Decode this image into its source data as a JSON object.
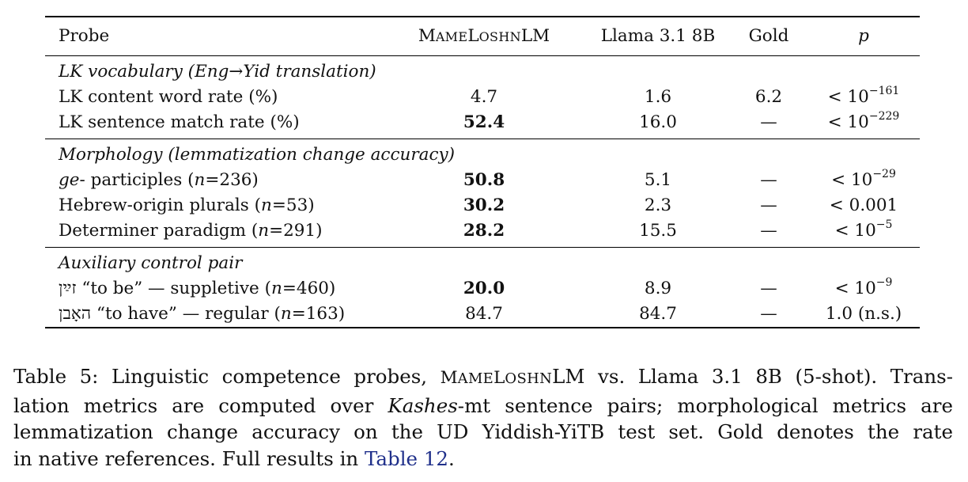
{
  "table": {
    "headers": {
      "probe": "Probe",
      "model_a_first": "M",
      "model_a_small1": "AME",
      "model_a_mid": "L",
      "model_a_small2": "OSHN",
      "model_a_end": "LM",
      "model_b": "Llama 3.1 8B",
      "gold": "Gold",
      "p": "p"
    },
    "sections": [
      {
        "title": "LK vocabulary (Eng→Yid translation)",
        "rows": [
          {
            "probe": "LK content word rate (%)",
            "a": "4.7",
            "b": "1.6",
            "gold": "6.2",
            "p_base": "< 10",
            "p_exp": "−161"
          },
          {
            "probe": "LK sentence match rate (%)",
            "a": "52.4",
            "b": "16.0",
            "gold": "—",
            "p_base": "< 10",
            "p_exp": "−229"
          }
        ]
      },
      {
        "title": "Morphology (lemmatization change accuracy)",
        "rows": [
          {
            "probe_italic": "ge",
            "probe_rest": "- participles (",
            "n_label": "n",
            "n_value": "=236)",
            "a": "50.8",
            "b": "5.1",
            "gold": "—",
            "p_base": "< 10",
            "p_exp": "−29"
          },
          {
            "probe_rest": "Hebrew-origin plurals (",
            "n_label": "n",
            "n_value": "=53)",
            "a": "30.2",
            "b": "2.3",
            "gold": "—",
            "p_base": "< 0.001",
            "p_exp": ""
          },
          {
            "probe_rest": "Determiner paradigm (",
            "n_label": "n",
            "n_value": "=291)",
            "a": "28.2",
            "b": "15.5",
            "gold": "—",
            "p_base": "< 10",
            "p_exp": "−5"
          }
        ]
      },
      {
        "title": "Auxiliary control pair",
        "rows": [
          {
            "hebrew": "זײַן",
            "probe_rest": " “to be” — suppletive (",
            "n_label": "n",
            "n_value": "=460)",
            "a": "20.0",
            "b": "8.9",
            "gold": "—",
            "p_base": "< 10",
            "p_exp": "−9"
          },
          {
            "hebrew": "האָבן",
            "probe_rest": " “to have” — regular (",
            "n_label": "n",
            "n_value": "=163)",
            "a": "84.7",
            "b": "84.7",
            "gold": "—",
            "p_base": "1.0 (n.s.)",
            "p_exp": ""
          }
        ]
      }
    ]
  },
  "caption": {
    "line1_a": "Table 5: Linguistic competence probes, ",
    "line1_sc1": "M",
    "line1_sc2": "AME",
    "line1_sc3": "L",
    "line1_sc4": "OSHN",
    "line1_b": "LM vs. Llama 3.1 8B (5-shot). Trans-",
    "line2_a": "lation metrics are computed over ",
    "line2_italic": "Kashes",
    "line2_b": "-mt sentence pairs; morphological metrics are",
    "line3": "lemmatization change accuracy on the UD Yiddish-YiTB test set. Gold denotes the rate",
    "line4_a": "in native references. Full results in ",
    "line4_link": "Table 12",
    "line4_b": "."
  }
}
